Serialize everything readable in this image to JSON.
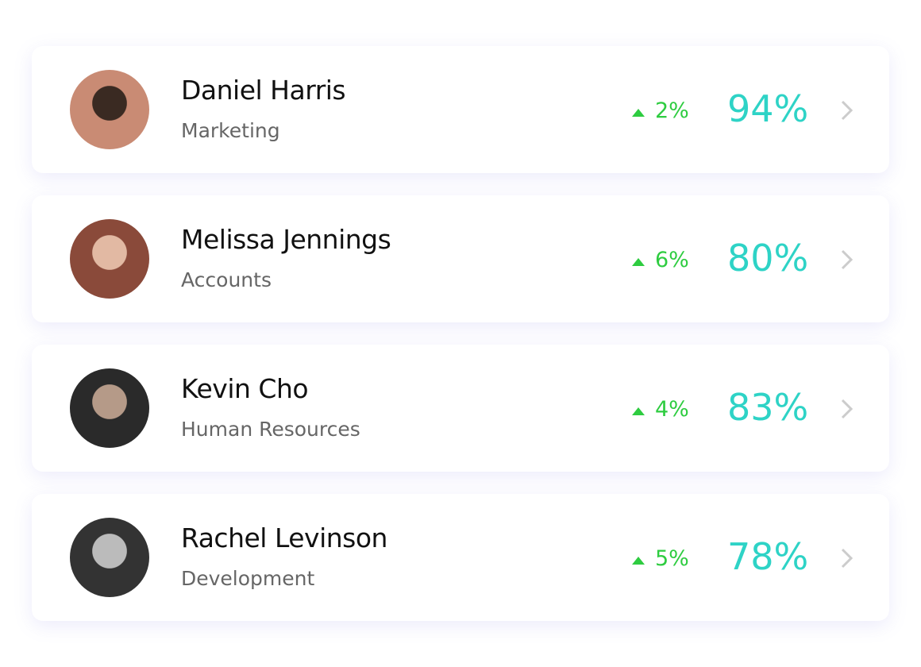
{
  "colors": {
    "up": "#2ecc40",
    "score": "#2ed3c6",
    "chevron": "#cccccc"
  },
  "people": [
    {
      "name": "Daniel Harris",
      "department": "Marketing",
      "change": "2%",
      "score": "94%",
      "avatar_colors": [
        "#c98b74",
        "#3a2a22"
      ]
    },
    {
      "name": "Melissa Jennings",
      "department": "Accounts",
      "change": "6%",
      "score": "80%",
      "avatar_colors": [
        "#8a4a3a",
        "#e2b9a3"
      ]
    },
    {
      "name": "Kevin Cho",
      "department": "Human Resources",
      "change": "4%",
      "score": "83%",
      "avatar_colors": [
        "#2a2a2a",
        "#b59a88"
      ]
    },
    {
      "name": "Rachel Levinson",
      "department": "Development",
      "change": "5%",
      "score": "78%",
      "avatar_colors": [
        "#333333",
        "#bbbbbb"
      ]
    }
  ]
}
